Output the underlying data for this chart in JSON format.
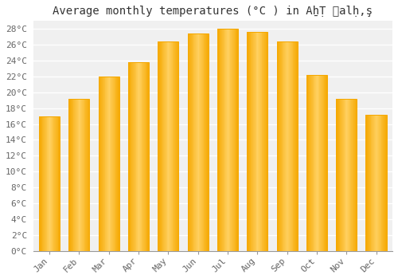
{
  "title": "Average monthly temperatures (°C ) in AẖṬ Ẫalḥ,ş",
  "months": [
    "Jan",
    "Feb",
    "Mar",
    "Apr",
    "May",
    "Jun",
    "Jul",
    "Aug",
    "Sep",
    "Oct",
    "Nov",
    "Dec"
  ],
  "temperatures": [
    17.0,
    19.2,
    22.0,
    23.8,
    26.4,
    27.4,
    28.0,
    27.6,
    26.4,
    22.2,
    19.2,
    17.2
  ],
  "bar_color_center": "#FFD060",
  "bar_color_edge": "#F5A800",
  "ylim": [
    0,
    29
  ],
  "ytick_values": [
    0,
    2,
    4,
    6,
    8,
    10,
    12,
    14,
    16,
    18,
    20,
    22,
    24,
    26,
    28
  ],
  "background_color": "#ffffff",
  "plot_bg_color": "#f0f0f0",
  "grid_color": "#ffffff",
  "title_fontsize": 10,
  "tick_fontsize": 8,
  "font_family": "monospace"
}
